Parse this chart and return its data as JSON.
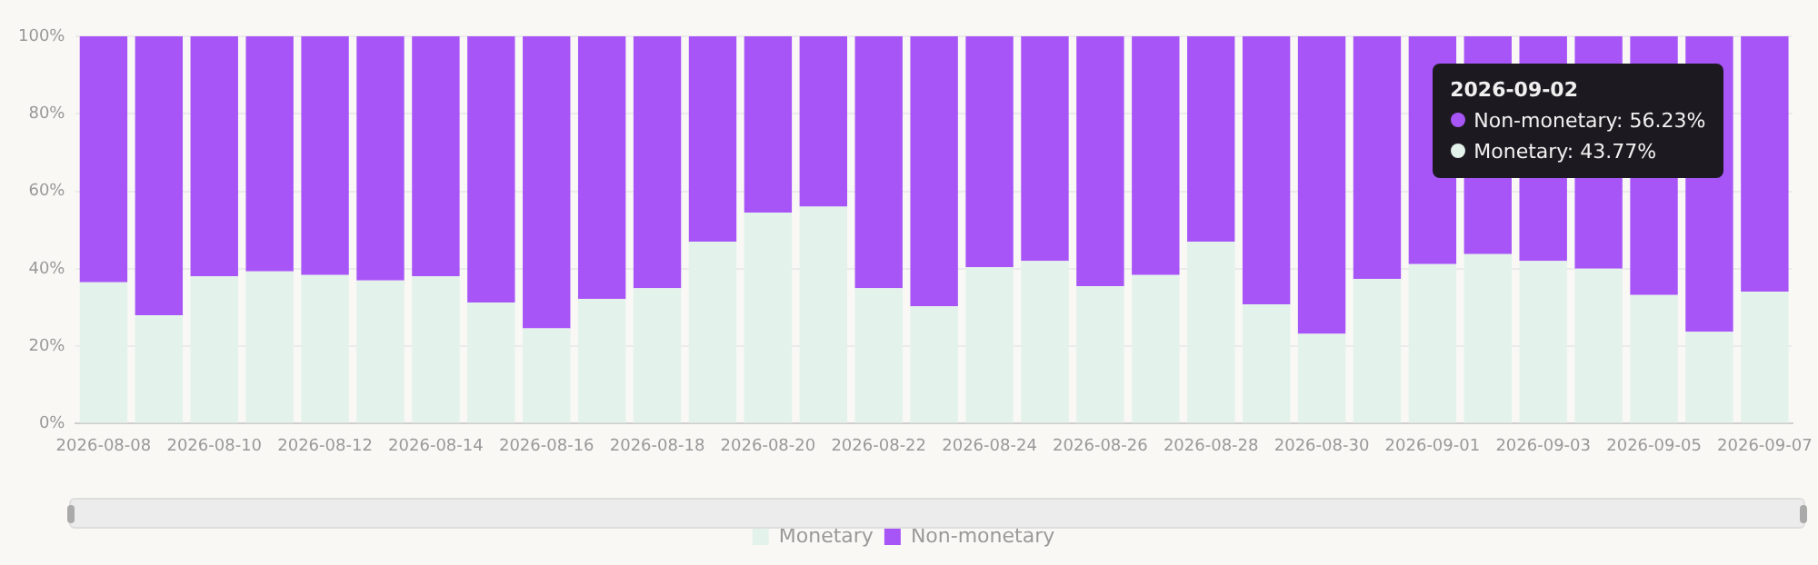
{
  "chart_data": {
    "type": "bar",
    "stacked": true,
    "categories": [
      "2026-08-08",
      null,
      "2026-08-10",
      null,
      "2026-08-12",
      null,
      "2026-08-14",
      null,
      "2026-08-16",
      null,
      "2026-08-18",
      null,
      "2026-08-20",
      null,
      "2026-08-22",
      null,
      "2026-08-24",
      null,
      "2026-08-26",
      null,
      "2026-08-28",
      null,
      "2026-08-30",
      null,
      "2026-09-01",
      null,
      "2026-09-03",
      null,
      "2026-09-05",
      null,
      "2026-09-07"
    ],
    "series": [
      {
        "name": "Monetary",
        "color": "#e3f2eb",
        "values": [
          36.5,
          28,
          38,
          39.3,
          38.4,
          37,
          38,
          31.3,
          24.6,
          32.2,
          35,
          47,
          54.5,
          56,
          35,
          30.3,
          40.4,
          42,
          35.5,
          38.4,
          47,
          30.8,
          23.2,
          37.4,
          41.2,
          43.77,
          42,
          40,
          33.2,
          23.7,
          34.1
        ]
      },
      {
        "name": "Non-monetary",
        "color": "#a855f7",
        "values": [
          63.5,
          72,
          62,
          60.7,
          61.6,
          63,
          62,
          68.7,
          75.4,
          67.8,
          65,
          53,
          45.5,
          44,
          65,
          69.7,
          59.6,
          58,
          64.5,
          61.6,
          53,
          69.2,
          76.8,
          62.6,
          58.8,
          56.23,
          58,
          60,
          66.8,
          76.3,
          65.9
        ]
      }
    ],
    "ylim": [
      0,
      100
    ],
    "yticks": [
      {
        "value": 0,
        "label": "0%"
      },
      {
        "value": 20,
        "label": "20%"
      },
      {
        "value": 40,
        "label": "40%"
      },
      {
        "value": 60,
        "label": "60%"
      },
      {
        "value": 80,
        "label": "80%"
      },
      {
        "value": 100,
        "label": "100%"
      }
    ],
    "grid": "y",
    "legend": "bottom",
    "annotations": [
      "2026-09-02",
      "Non-monetary: 56.23%",
      "Monetary: 43.77%"
    ]
  }
}
